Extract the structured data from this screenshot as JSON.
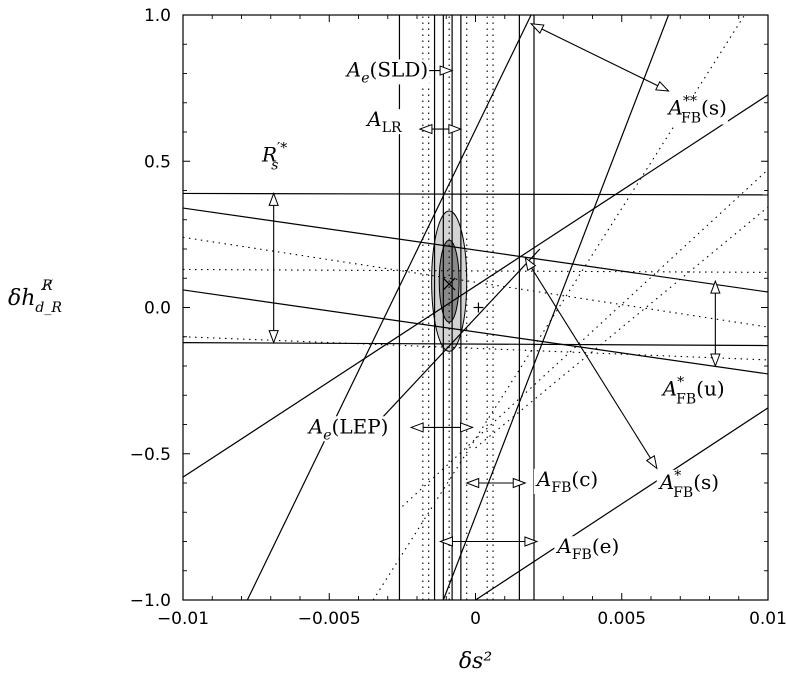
{
  "chart_data": {
    "type": "scatter",
    "title": "",
    "xlabel": "δs²",
    "ylabel": "δh",
    "ylabel_sup": "R̸",
    "ylabel_sub": "d_R",
    "xlim": [
      -0.01,
      0.01
    ],
    "ylim": [
      -1.0,
      1.0
    ],
    "grid": false,
    "x_ticks": [
      -0.01,
      -0.005,
      0,
      0.005,
      0.01
    ],
    "x_tick_labels": [
      "−0.01",
      "−0.005",
      "0",
      "0.005",
      "0.01"
    ],
    "y_ticks": [
      -1.0,
      -0.5,
      0.0,
      0.5,
      1.0
    ],
    "y_tick_labels": [
      "−1.0",
      "−0.5",
      "0.0",
      "0.5",
      "1.0"
    ],
    "solid_lines": [
      {
        "x": [
          -0.0026,
          -0.0026
        ],
        "y": [
          -1.0,
          1.0
        ]
      },
      {
        "x": [
          -0.0014,
          -0.0014
        ],
        "y": [
          -1.0,
          1.0
        ]
      },
      {
        "x": [
          -0.0011,
          -0.0011
        ],
        "y": [
          -1.0,
          1.0
        ]
      },
      {
        "x": [
          -0.0008,
          -0.0008
        ],
        "y": [
          -1.0,
          1.0
        ]
      },
      {
        "x": [
          -0.0005,
          -0.0005
        ],
        "y": [
          -1.0,
          1.0
        ]
      },
      {
        "x": [
          0.0015,
          0.0015
        ],
        "y": [
          -1.0,
          1.0
        ]
      },
      {
        "x": [
          0.002,
          0.002
        ],
        "y": [
          -1.0,
          1.0
        ]
      },
      {
        "x": [
          -0.01,
          0.0102
        ],
        "y": [
          0.39,
          0.385
        ]
      },
      {
        "x": [
          -0.01,
          0.0102
        ],
        "y": [
          -0.12,
          -0.13
        ]
      },
      {
        "x": [
          -0.01,
          0.0102
        ],
        "y": [
          0.34,
          0.05
        ]
      },
      {
        "x": [
          -0.01,
          0.0102
        ],
        "y": [
          0.06,
          -0.23
        ]
      },
      {
        "x": [
          -0.01,
          0.0102
        ],
        "y": [
          -0.58,
          0.74
        ]
      },
      {
        "x": [
          -0.0078,
          0.0019
        ],
        "y": [
          -1.0,
          1.0
        ]
      },
      {
        "x": [
          -0.0011,
          0.0066
        ],
        "y": [
          -1.0,
          1.0
        ]
      },
      {
        "x": [
          0.0,
          0.0102
        ],
        "y": [
          -1.0,
          -0.33
        ]
      },
      {
        "x": [
          -0.0035,
          0.0022
        ],
        "y": [
          -0.41,
          0.2
        ]
      }
    ],
    "dotted_lines": [
      {
        "x": [
          -0.0018,
          -0.0018
        ],
        "y": [
          -1.0,
          1.0
        ]
      },
      {
        "x": [
          -0.0016,
          -0.0016
        ],
        "y": [
          -1.0,
          1.0
        ]
      },
      {
        "x": [
          -0.0009,
          -0.0009
        ],
        "y": [
          -1.0,
          1.0
        ]
      },
      {
        "x": [
          -0.0003,
          -0.0003
        ],
        "y": [
          -1.0,
          1.0
        ]
      },
      {
        "x": [
          0.0004,
          0.0004
        ],
        "y": [
          -1.0,
          1.0
        ]
      },
      {
        "x": [
          0.0006,
          0.0006
        ],
        "y": [
          -1.0,
          1.0
        ]
      },
      {
        "x": [
          -0.01,
          0.0102
        ],
        "y": [
          0.13,
          0.12
        ]
      },
      {
        "x": [
          -0.01,
          0.0102
        ],
        "y": [
          0.24,
          -0.07
        ]
      },
      {
        "x": [
          -0.01,
          0.0102
        ],
        "y": [
          -0.1,
          -0.18
        ]
      },
      {
        "x": [
          -0.0035,
          0.0092
        ],
        "y": [
          -1.0,
          1.0
        ]
      },
      {
        "x": [
          -0.0025,
          0.0102
        ],
        "y": [
          -0.68,
          0.49
        ]
      },
      {
        "x": [
          0.0,
          0.0102
        ],
        "y": [
          -0.48,
          0.36
        ]
      }
    ],
    "ellipse": {
      "center": [
        -0.0009,
        0.09
      ],
      "outer_semi_axes": [
        0.0006,
        0.24
      ],
      "inner_semi_axes": [
        0.00034,
        0.14
      ]
    },
    "markers": [
      {
        "shape": "x",
        "x": -0.0009,
        "y": 0.08
      },
      {
        "shape": "plus",
        "x": 0.0001,
        "y": 0.0
      }
    ],
    "annotations": [
      {
        "name": "A",
        "sub": "e",
        "paren": "(SLD)",
        "at": [
          -0.0044,
          0.79
        ],
        "arrow": [
          [
            -0.0025,
            0.81
          ],
          [
            -0.0008,
            0.81
          ]
        ]
      },
      {
        "name": "A",
        "sub": "LR",
        "paren": "",
        "at": [
          -0.0037,
          0.62
        ],
        "arrow": [
          [
            -0.0019,
            0.61
          ],
          [
            -0.0005,
            0.61
          ]
        ]
      },
      {
        "name": "R",
        "sub": "s",
        "sup": "′*",
        "paren": "",
        "at": [
          -0.0073,
          0.5
        ],
        "arrow": [
          [
            -0.0069,
            0.39
          ],
          [
            -0.0069,
            -0.12
          ]
        ]
      },
      {
        "name": "A",
        "sub": "FB",
        "sup": "**",
        "paren": "(s)",
        "at": [
          0.0066,
          0.66
        ],
        "arrow": [
          [
            0.0019,
            0.97
          ],
          [
            0.0066,
            0.74
          ]
        ]
      },
      {
        "name": "A",
        "sub": "FB",
        "sup": "*",
        "paren": "(u)",
        "at": [
          0.0064,
          -0.3
        ],
        "arrow": [
          [
            0.0082,
            0.09
          ],
          [
            0.0082,
            -0.2
          ]
        ]
      },
      {
        "name": "A",
        "sub": "e",
        "paren": "(LEP)",
        "at": [
          -0.0057,
          -0.43
        ],
        "arrow": [
          [
            -0.0022,
            -0.41
          ],
          [
            -0.0001,
            -0.41
          ]
        ]
      },
      {
        "name": "A",
        "sub": "FB",
        "sup": "*",
        "paren": "(s)",
        "at": [
          0.0063,
          -0.62
        ],
        "arrow": [
          [
            0.0017,
            0.17
          ],
          [
            0.0062,
            -0.55
          ]
        ]
      },
      {
        "name": "A",
        "sub": "FB",
        "paren": "(c)",
        "at": [
          0.0021,
          -0.61
        ],
        "arrow": [
          [
            -0.0003,
            -0.6
          ],
          [
            0.0017,
            -0.6
          ]
        ]
      },
      {
        "name": "A",
        "sub": "FB",
        "paren": "(e)",
        "at": [
          0.0028,
          -0.84
        ],
        "arrow": [
          [
            -0.0012,
            -0.8
          ],
          [
            0.0021,
            -0.8
          ]
        ]
      }
    ]
  }
}
